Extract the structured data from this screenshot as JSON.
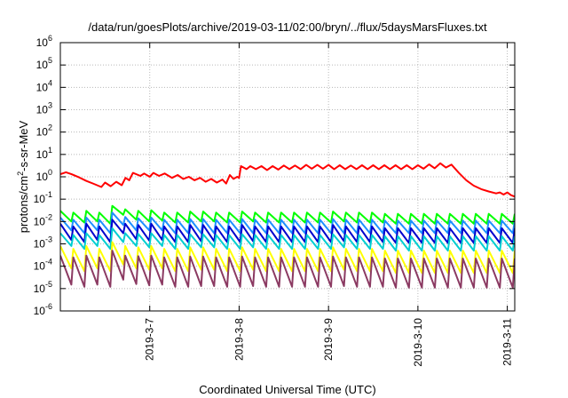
{
  "chart_data": {
    "type": "line",
    "title": "/data/run/goesPlots/archive/2019-03-11/02:00/bryn/../flux/5daysMarsFluxes.txt",
    "xlabel": "Coordinated Universal Time (UTC)",
    "ylabel": "protons/cm2-s-sr-MeV",
    "ylabel_main": "protons/cm",
    "ylabel_sup": "2",
    "ylabel_rest": "-s-sr-MeV",
    "y_scale": "log",
    "ylim": [
      1e-06,
      1000000.0
    ],
    "y_ticks": [
      {
        "value": -6,
        "base": "10",
        "exp": "-6"
      },
      {
        "value": -5,
        "base": "10",
        "exp": "-5"
      },
      {
        "value": -4,
        "base": "10",
        "exp": "-4"
      },
      {
        "value": -3,
        "base": "10",
        "exp": "-3"
      },
      {
        "value": -2,
        "base": "10",
        "exp": "-2"
      },
      {
        "value": -1,
        "base": "10",
        "exp": "-1"
      },
      {
        "value": 0,
        "base": "10",
        "exp": "0"
      },
      {
        "value": 1,
        "base": "10",
        "exp": "1"
      },
      {
        "value": 2,
        "base": "10",
        "exp": "2"
      },
      {
        "value": 3,
        "base": "10",
        "exp": "3"
      },
      {
        "value": 4,
        "base": "10",
        "exp": "4"
      },
      {
        "value": 5,
        "base": "10",
        "exp": "5"
      },
      {
        "value": 6,
        "base": "10",
        "exp": "6"
      }
    ],
    "xlim": [
      "2019-03-06 00:00",
      "2019-03-11 02:00"
    ],
    "x_ticks": [
      {
        "value": "2019-03-07 00:00",
        "label": "2019-3-7"
      },
      {
        "value": "2019-03-08 00:00",
        "label": "2019-3-8"
      },
      {
        "value": "2019-03-09 00:00",
        "label": "2019-3-9"
      },
      {
        "value": "2019-03-10 00:00",
        "label": "2019-3-10"
      },
      {
        "value": "2019-03-11 00:00",
        "label": "2019-3-11"
      }
    ],
    "grid": true,
    "legend": "none",
    "series": [
      {
        "color": "#ff0000",
        "points": [
          [
            "2019-03-06 00:00",
            1.3
          ],
          [
            "2019-03-06 01:30",
            1.6
          ],
          [
            "2019-03-06 03:00",
            1.3
          ],
          [
            "2019-03-06 05:00",
            0.95
          ],
          [
            "2019-03-06 07:00",
            0.65
          ],
          [
            "2019-03-06 09:00",
            0.48
          ],
          [
            "2019-03-06 11:00",
            0.35
          ],
          [
            "2019-03-06 12:00",
            0.55
          ],
          [
            "2019-03-06 13:30",
            0.38
          ],
          [
            "2019-03-06 15:00",
            0.6
          ],
          [
            "2019-03-06 16:30",
            0.42
          ],
          [
            "2019-03-06 17:30",
            0.9
          ],
          [
            "2019-03-06 18:30",
            0.7
          ],
          [
            "2019-03-06 19:30",
            1.5
          ],
          [
            "2019-03-06 21:30",
            1.1
          ],
          [
            "2019-03-06 22:30",
            1.4
          ],
          [
            "2019-03-07 00:00",
            1.0
          ],
          [
            "2019-03-07 01:00",
            1.5
          ],
          [
            "2019-03-07 02:30",
            1.1
          ],
          [
            "2019-03-07 04:00",
            1.4
          ],
          [
            "2019-03-07 06:00",
            0.9
          ],
          [
            "2019-03-07 07:30",
            1.2
          ],
          [
            "2019-03-07 09:00",
            0.8
          ],
          [
            "2019-03-07 10:30",
            1.0
          ],
          [
            "2019-03-07 12:00",
            0.7
          ],
          [
            "2019-03-07 13:30",
            0.9
          ],
          [
            "2019-03-07 15:00",
            0.6
          ],
          [
            "2019-03-07 16:30",
            0.8
          ],
          [
            "2019-03-07 18:00",
            0.55
          ],
          [
            "2019-03-07 19:30",
            0.75
          ],
          [
            "2019-03-07 20:30",
            0.5
          ],
          [
            "2019-03-07 21:30",
            1.2
          ],
          [
            "2019-03-07 22:30",
            0.8
          ],
          [
            "2019-03-07 23:30",
            1.0
          ],
          [
            "2019-03-08 00:00",
            0.9
          ],
          [
            "2019-03-08 00:30",
            3.0
          ],
          [
            "2019-03-08 02:00",
            2.2
          ],
          [
            "2019-03-08 03:00",
            3.0
          ],
          [
            "2019-03-08 04:30",
            2.2
          ],
          [
            "2019-03-08 06:00",
            3.0
          ],
          [
            "2019-03-08 07:30",
            2.0
          ],
          [
            "2019-03-08 09:00",
            3.0
          ],
          [
            "2019-03-08 10:30",
            2.1
          ],
          [
            "2019-03-08 12:00",
            3.2
          ],
          [
            "2019-03-08 13:30",
            2.2
          ],
          [
            "2019-03-08 15:00",
            3.2
          ],
          [
            "2019-03-08 16:30",
            2.2
          ],
          [
            "2019-03-08 18:00",
            3.4
          ],
          [
            "2019-03-08 19:30",
            2.3
          ],
          [
            "2019-03-08 21:00",
            3.4
          ],
          [
            "2019-03-08 22:30",
            2.3
          ],
          [
            "2019-03-09 00:00",
            3.4
          ],
          [
            "2019-03-09 01:30",
            2.2
          ],
          [
            "2019-03-09 03:00",
            3.3
          ],
          [
            "2019-03-09 04:30",
            2.2
          ],
          [
            "2019-03-09 06:00",
            3.2
          ],
          [
            "2019-03-09 07:30",
            2.2
          ],
          [
            "2019-03-09 09:00",
            3.3
          ],
          [
            "2019-03-09 10:30",
            2.2
          ],
          [
            "2019-03-09 12:00",
            3.3
          ],
          [
            "2019-03-09 13:30",
            2.2
          ],
          [
            "2019-03-09 15:00",
            3.3
          ],
          [
            "2019-03-09 16:30",
            2.2
          ],
          [
            "2019-03-09 18:00",
            3.3
          ],
          [
            "2019-03-09 19:30",
            2.2
          ],
          [
            "2019-03-09 21:00",
            3.3
          ],
          [
            "2019-03-09 22:30",
            2.2
          ],
          [
            "2019-03-10 00:00",
            3.3
          ],
          [
            "2019-03-10 01:30",
            2.3
          ],
          [
            "2019-03-10 03:00",
            3.6
          ],
          [
            "2019-03-10 04:30",
            2.4
          ],
          [
            "2019-03-10 06:00",
            4.0
          ],
          [
            "2019-03-10 07:30",
            2.6
          ],
          [
            "2019-03-10 09:00",
            3.5
          ],
          [
            "2019-03-10 11:00",
            1.5
          ],
          [
            "2019-03-10 13:00",
            0.7
          ],
          [
            "2019-03-10 15:00",
            0.4
          ],
          [
            "2019-03-10 17:00",
            0.28
          ],
          [
            "2019-03-10 19:00",
            0.22
          ],
          [
            "2019-03-10 21:00",
            0.18
          ],
          [
            "2019-03-10 22:00",
            0.2
          ],
          [
            "2019-03-10 23:00",
            0.16
          ],
          [
            "2019-03-11 00:00",
            0.2
          ],
          [
            "2019-03-11 01:00",
            0.15
          ],
          [
            "2019-03-11 02:00",
            0.13
          ]
        ]
      },
      {
        "color": "#00ff00",
        "pattern": {
          "low": [
            0.01,
            0.009,
            0.01,
            0.008,
            0.02,
            0.012,
            0.01,
            0.011,
            0.009,
            0.009,
            0.01,
            0.01,
            0.009,
            0.009,
            0.01,
            0.009,
            0.009,
            0.009,
            0.009,
            0.009,
            0.009,
            0.01,
            0.009,
            0.009,
            0.009,
            0.008,
            0.008,
            0.008,
            0.008,
            0.008,
            0.008,
            0.008,
            0.008,
            0.008,
            0.008
          ],
          "high": [
            0.03,
            0.025,
            0.03,
            0.025,
            0.05,
            0.035,
            0.03,
            0.032,
            0.025,
            0.025,
            0.028,
            0.028,
            0.025,
            0.025,
            0.028,
            0.025,
            0.025,
            0.025,
            0.025,
            0.025,
            0.025,
            0.028,
            0.025,
            0.025,
            0.025,
            0.022,
            0.022,
            0.022,
            0.022,
            0.022,
            0.022,
            0.022,
            0.022,
            0.022,
            0.022
          ]
        }
      },
      {
        "color": "#1e90ff",
        "pattern": {
          "low": [
            0.004,
            0.003,
            0.004,
            0.003,
            0.007,
            0.004,
            0.004,
            0.004,
            0.003,
            0.003,
            0.003,
            0.003,
            0.003,
            0.003,
            0.003,
            0.003,
            0.003,
            0.003,
            0.003,
            0.003,
            0.003,
            0.003,
            0.003,
            0.003,
            0.003,
            0.003,
            0.003,
            0.003,
            0.003,
            0.003,
            0.003,
            0.003,
            0.003,
            0.003,
            0.003
          ],
          "high": [
            0.015,
            0.012,
            0.015,
            0.012,
            0.025,
            0.016,
            0.014,
            0.015,
            0.012,
            0.012,
            0.013,
            0.013,
            0.012,
            0.012,
            0.013,
            0.012,
            0.012,
            0.012,
            0.012,
            0.012,
            0.012,
            0.013,
            0.012,
            0.012,
            0.012,
            0.011,
            0.011,
            0.011,
            0.011,
            0.011,
            0.011,
            0.011,
            0.011,
            0.011,
            0.011
          ]
        }
      },
      {
        "color": "#0000cd",
        "pattern": {
          "low": [
            0.0015,
            0.0012,
            0.0015,
            0.0012,
            0.003,
            0.0016,
            0.0014,
            0.0015,
            0.0012,
            0.0012,
            0.0013,
            0.0013,
            0.0012,
            0.0012,
            0.0013,
            0.0012,
            0.0012,
            0.0012,
            0.0012,
            0.0012,
            0.0012,
            0.0013,
            0.0012,
            0.0012,
            0.0012,
            0.0011,
            0.0011,
            0.0011,
            0.0011,
            0.0011,
            0.0011,
            0.0011,
            0.0011,
            0.0011,
            0.0011
          ],
          "high": [
            0.008,
            0.006,
            0.008,
            0.006,
            0.012,
            0.008,
            0.007,
            0.008,
            0.006,
            0.006,
            0.007,
            0.007,
            0.006,
            0.006,
            0.007,
            0.006,
            0.006,
            0.006,
            0.006,
            0.006,
            0.006,
            0.007,
            0.006,
            0.006,
            0.006,
            0.005,
            0.005,
            0.005,
            0.005,
            0.005,
            0.005,
            0.005,
            0.005,
            0.005,
            0.005
          ]
        }
      },
      {
        "color": "#00ced1",
        "pattern": {
          "low": [
            0.0008,
            0.0006,
            0.0008,
            0.0006,
            0.0012,
            0.0008,
            0.0007,
            0.0008,
            0.0006,
            0.0006,
            0.0007,
            0.0007,
            0.0006,
            0.0006,
            0.0007,
            0.0006,
            0.0006,
            0.0006,
            0.0006,
            0.0006,
            0.0006,
            0.0007,
            0.0006,
            0.0006,
            0.0006,
            0.0005,
            0.0005,
            0.0005,
            0.0005,
            0.0005,
            0.0005,
            0.0005,
            0.0005,
            0.0005,
            0.0005
          ],
          "high": [
            0.003,
            0.0025,
            0.003,
            0.0025,
            0.005,
            0.003,
            0.0028,
            0.003,
            0.0025,
            0.0025,
            0.0027,
            0.0027,
            0.0025,
            0.0025,
            0.0027,
            0.0025,
            0.0025,
            0.0025,
            0.0025,
            0.0025,
            0.0025,
            0.0027,
            0.0025,
            0.0025,
            0.0025,
            0.0022,
            0.0022,
            0.0022,
            0.0022,
            0.0022,
            0.0022,
            0.0022,
            0.0022,
            0.0022,
            0.0022
          ]
        }
      },
      {
        "color": "#ffff00",
        "pattern": {
          "low": [
            8e-05,
            6e-05,
            8e-05,
            6e-05,
            0.00012,
            8e-05,
            7e-05,
            8e-05,
            6e-05,
            6e-05,
            7e-05,
            7e-05,
            6e-05,
            6e-05,
            7e-05,
            6e-05,
            6e-05,
            6e-05,
            6e-05,
            6e-05,
            6e-05,
            7e-05,
            6e-05,
            6e-05,
            6e-05,
            5e-05,
            5e-05,
            5e-05,
            5e-05,
            5e-05,
            5e-05,
            5e-05,
            5e-05,
            5e-05,
            5e-05
          ],
          "high": [
            0.0008,
            0.0006,
            0.0008,
            0.0006,
            0.0012,
            0.0008,
            0.0007,
            0.0008,
            0.0006,
            0.0006,
            0.0007,
            0.0007,
            0.0006,
            0.0006,
            0.0007,
            0.0006,
            0.0006,
            0.0006,
            0.0006,
            0.0006,
            0.0006,
            0.0007,
            0.0006,
            0.0006,
            0.0006,
            0.0005,
            0.0005,
            0.0005,
            0.0005,
            0.0005,
            0.0005,
            0.0005,
            0.0005,
            0.0005,
            0.0005
          ]
        }
      },
      {
        "color": "#8b3a62",
        "pattern": {
          "low": [
            1.5e-05,
            1.2e-05,
            1.5e-05,
            1.2e-05,
            2.5e-05,
            1.6e-05,
            1.4e-05,
            1.5e-05,
            1.2e-05,
            1.2e-05,
            1.3e-05,
            1.3e-05,
            1.2e-05,
            1.2e-05,
            1.3e-05,
            1.2e-05,
            1.2e-05,
            1.2e-05,
            1.2e-05,
            1.2e-05,
            1.2e-05,
            1.3e-05,
            1.2e-05,
            1.2e-05,
            1.2e-05,
            1.1e-05,
            1.1e-05,
            1.1e-05,
            1.1e-05,
            1.1e-05,
            1.1e-05,
            1.1e-05,
            1.1e-05,
            1.1e-05,
            1.1e-05
          ],
          "high": [
            0.0003,
            0.00025,
            0.0003,
            0.00025,
            0.0005,
            0.0003,
            0.00028,
            0.0003,
            0.00025,
            0.00025,
            0.00027,
            0.00027,
            0.00025,
            0.00025,
            0.00027,
            0.00025,
            0.00025,
            0.00025,
            0.00025,
            0.00025,
            0.00025,
            0.00027,
            0.00025,
            0.00025,
            0.00025,
            0.00022,
            0.00022,
            0.00022,
            0.00022,
            0.00022,
            0.00022,
            0.00022,
            0.00022,
            0.00022,
            0.00022
          ]
        }
      }
    ]
  }
}
